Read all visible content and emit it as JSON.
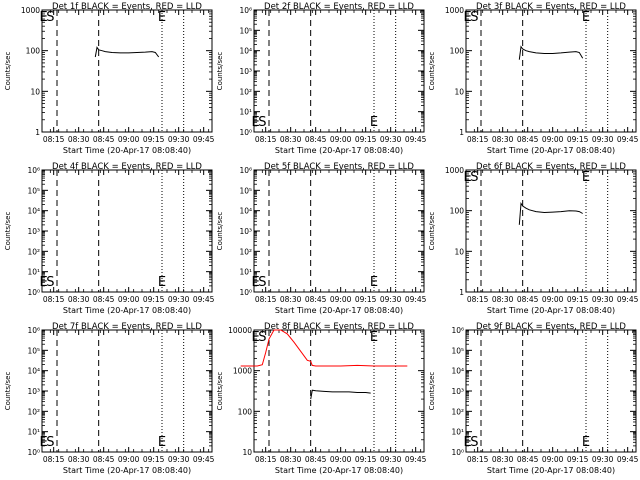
{
  "chart_data": [
    {
      "type": "line",
      "title": "Det 1f BLACK = Events, RED = LLD",
      "ylabel": "Counts/sec",
      "xlabel": "Start Time (20-Apr-17 08:08:40)",
      "xticks": [
        "08:15",
        "08:30",
        "08:45",
        "09:00",
        "09:15",
        "09:30",
        "09:45"
      ],
      "yscale": "log",
      "ylim": [
        1,
        1000
      ],
      "yticks": [
        "1",
        "10",
        "100",
        "1000"
      ],
      "markers": [
        {
          "label": "E",
          "x": "08:09"
        },
        {
          "label": "S",
          "x": "08:13"
        },
        {
          "label": "E",
          "x": "09:20"
        }
      ],
      "series": [
        {
          "color": "#000000",
          "x": [
            "08:40",
            "08:41",
            "08:42",
            "08:44",
            "08:46",
            "08:50",
            "08:55",
            "09:00",
            "09:05",
            "09:10",
            "09:14",
            "09:16",
            "09:18"
          ],
          "y": [
            70,
            120,
            105,
            100,
            95,
            90,
            88,
            88,
            90,
            92,
            95,
            90,
            70
          ]
        }
      ]
    },
    {
      "type": "line",
      "title": "Det 2f BLACK = Events, RED = LLD",
      "ylabel": "Counts/sec",
      "xlabel": "Start Time (20-Apr-17 08:08:40)",
      "xticks": [
        "08:15",
        "08:30",
        "08:45",
        "09:00",
        "09:15",
        "09:30",
        "09:45"
      ],
      "yscale": "log",
      "ylim": [
        1,
        1000000
      ],
      "yticks": [
        "10⁰",
        "10¹",
        "10²",
        "10³",
        "10⁴",
        "10⁵",
        "10⁶"
      ],
      "markers": [
        {
          "label": "E",
          "x": "08:09"
        },
        {
          "label": "S",
          "x": "08:13"
        },
        {
          "label": "E",
          "x": "09:20"
        }
      ],
      "series": []
    },
    {
      "type": "line",
      "title": "Det 3f BLACK = Events, RED = LLD",
      "ylabel": "Counts/sec",
      "xlabel": "Start Time (20-Apr-17 08:08:40)",
      "xticks": [
        "08:15",
        "08:30",
        "08:45",
        "09:00",
        "09:15",
        "09:30",
        "09:45"
      ],
      "yscale": "log",
      "ylim": [
        1,
        1000
      ],
      "yticks": [
        "1",
        "10",
        "100",
        "1000"
      ],
      "markers": [
        {
          "label": "E",
          "x": "08:09"
        },
        {
          "label": "S",
          "x": "08:13"
        },
        {
          "label": "E",
          "x": "09:20"
        }
      ],
      "series": [
        {
          "color": "#000000",
          "x": [
            "08:40",
            "08:41",
            "08:42",
            "08:44",
            "08:46",
            "08:50",
            "08:55",
            "09:00",
            "09:05",
            "09:10",
            "09:14",
            "09:16",
            "09:18"
          ],
          "y": [
            60,
            125,
            110,
            100,
            95,
            88,
            85,
            85,
            88,
            92,
            95,
            90,
            65
          ]
        }
      ]
    },
    {
      "type": "line",
      "title": "Det 4f BLACK = Events, RED = LLD",
      "ylabel": "Counts/sec",
      "xlabel": "Start Time (20-Apr-17 08:08:40)",
      "xticks": [
        "08:15",
        "08:30",
        "08:45",
        "09:00",
        "09:15",
        "09:30",
        "09:45"
      ],
      "yscale": "log",
      "ylim": [
        1,
        1000000
      ],
      "yticks": [
        "10⁰",
        "10¹",
        "10²",
        "10³",
        "10⁴",
        "10⁵",
        "10⁶"
      ],
      "markers": [
        {
          "label": "E",
          "x": "08:09"
        },
        {
          "label": "S",
          "x": "08:13"
        },
        {
          "label": "E",
          "x": "09:20"
        }
      ],
      "series": []
    },
    {
      "type": "line",
      "title": "Det 5f BLACK = Events, RED = LLD",
      "ylabel": "Counts/sec",
      "xlabel": "Start Time (20-Apr-17 08:08:40)",
      "xticks": [
        "08:15",
        "08:30",
        "08:45",
        "09:00",
        "09:15",
        "09:30",
        "09:45"
      ],
      "yscale": "log",
      "ylim": [
        1,
        1000000
      ],
      "yticks": [
        "10⁰",
        "10¹",
        "10²",
        "10³",
        "10⁴",
        "10⁵",
        "10⁶"
      ],
      "markers": [
        {
          "label": "E",
          "x": "08:09"
        },
        {
          "label": "S",
          "x": "08:13"
        },
        {
          "label": "E",
          "x": "09:20"
        }
      ],
      "series": []
    },
    {
      "type": "line",
      "title": "Det 6f BLACK = Events, RED = LLD",
      "ylabel": "Counts/sec",
      "xlabel": "Start Time (20-Apr-17 08:08:40)",
      "xticks": [
        "08:15",
        "08:30",
        "08:45",
        "09:00",
        "09:15",
        "09:30",
        "09:45"
      ],
      "yscale": "log",
      "ylim": [
        1,
        1000
      ],
      "yticks": [
        "1",
        "10",
        "100",
        "1000"
      ],
      "markers": [
        {
          "label": "E",
          "x": "08:09"
        },
        {
          "label": "S",
          "x": "08:13"
        },
        {
          "label": "E",
          "x": "09:20"
        }
      ],
      "series": [
        {
          "color": "#000000",
          "x": [
            "08:40",
            "08:41",
            "08:42",
            "08:44",
            "08:46",
            "08:50",
            "08:55",
            "09:00",
            "09:05",
            "09:10",
            "09:14",
            "09:16",
            "09:18"
          ],
          "y": [
            45,
            150,
            130,
            115,
            105,
            95,
            90,
            92,
            95,
            100,
            98,
            95,
            85
          ]
        }
      ]
    },
    {
      "type": "line",
      "title": "Det 7f BLACK = Events, RED = LLD",
      "ylabel": "Counts/sec",
      "xlabel": "Start Time (20-Apr-17 08:08:40)",
      "xticks": [
        "08:15",
        "08:30",
        "08:45",
        "09:00",
        "09:15",
        "09:30",
        "09:45"
      ],
      "yscale": "log",
      "ylim": [
        1,
        1000000
      ],
      "yticks": [
        "10⁰",
        "10¹",
        "10²",
        "10³",
        "10⁴",
        "10⁵",
        "10⁶"
      ],
      "markers": [
        {
          "label": "E",
          "x": "08:09"
        },
        {
          "label": "S",
          "x": "08:13"
        },
        {
          "label": "E",
          "x": "09:20"
        }
      ],
      "series": []
    },
    {
      "type": "line",
      "title": "Det 8f BLACK = Events, RED = LLD",
      "ylabel": "Counts/sec",
      "xlabel": "Start Time (20-Apr-17 08:08:40)",
      "xticks": [
        "08:15",
        "08:30",
        "08:45",
        "09:00",
        "09:15",
        "09:30",
        "09:45"
      ],
      "yscale": "log",
      "ylim": [
        10,
        10000
      ],
      "yticks": [
        "10",
        "100",
        "1000",
        "10000"
      ],
      "markers": [
        {
          "label": "E",
          "x": "08:09"
        },
        {
          "label": "S",
          "x": "08:13"
        },
        {
          "label": "E",
          "x": "09:20"
        }
      ],
      "series": [
        {
          "color": "#000000",
          "x": [
            "08:42",
            "08:43",
            "08:45",
            "08:50",
            "08:55",
            "09:00",
            "09:05",
            "09:10",
            "09:15",
            "09:18"
          ],
          "y": [
            200,
            330,
            320,
            310,
            300,
            300,
            300,
            290,
            290,
            280
          ]
        },
        {
          "color": "#ff0000",
          "x": [
            "08:00",
            "08:10",
            "08:13",
            "08:15",
            "08:17",
            "08:20",
            "08:24",
            "08:28",
            "08:32",
            "08:36",
            "08:40",
            "08:42",
            "08:43",
            "08:45",
            "08:50",
            "09:00",
            "09:10",
            "09:20",
            "09:30",
            "09:40"
          ],
          "y": [
            1300,
            1300,
            1400,
            2800,
            6000,
            12000,
            11000,
            8000,
            5000,
            3000,
            1800,
            1700,
            1350,
            1300,
            1300,
            1300,
            1350,
            1300,
            1300,
            1300
          ]
        }
      ]
    },
    {
      "type": "line",
      "title": "Det 9f BLACK = Events, RED = LLD",
      "ylabel": "Counts/sec",
      "xlabel": "Start Time (20-Apr-17 08:08:40)",
      "xticks": [
        "08:15",
        "08:30",
        "08:45",
        "09:00",
        "09:15",
        "09:30",
        "09:45"
      ],
      "yscale": "log",
      "ylim": [
        1,
        1000000
      ],
      "yticks": [
        "10⁰",
        "10¹",
        "10²",
        "10³",
        "10⁴",
        "10⁵",
        "10⁶"
      ],
      "markers": [
        {
          "label": "E",
          "x": "08:09"
        },
        {
          "label": "S",
          "x": "08:13"
        },
        {
          "label": "E",
          "x": "09:20"
        }
      ],
      "series": []
    }
  ]
}
